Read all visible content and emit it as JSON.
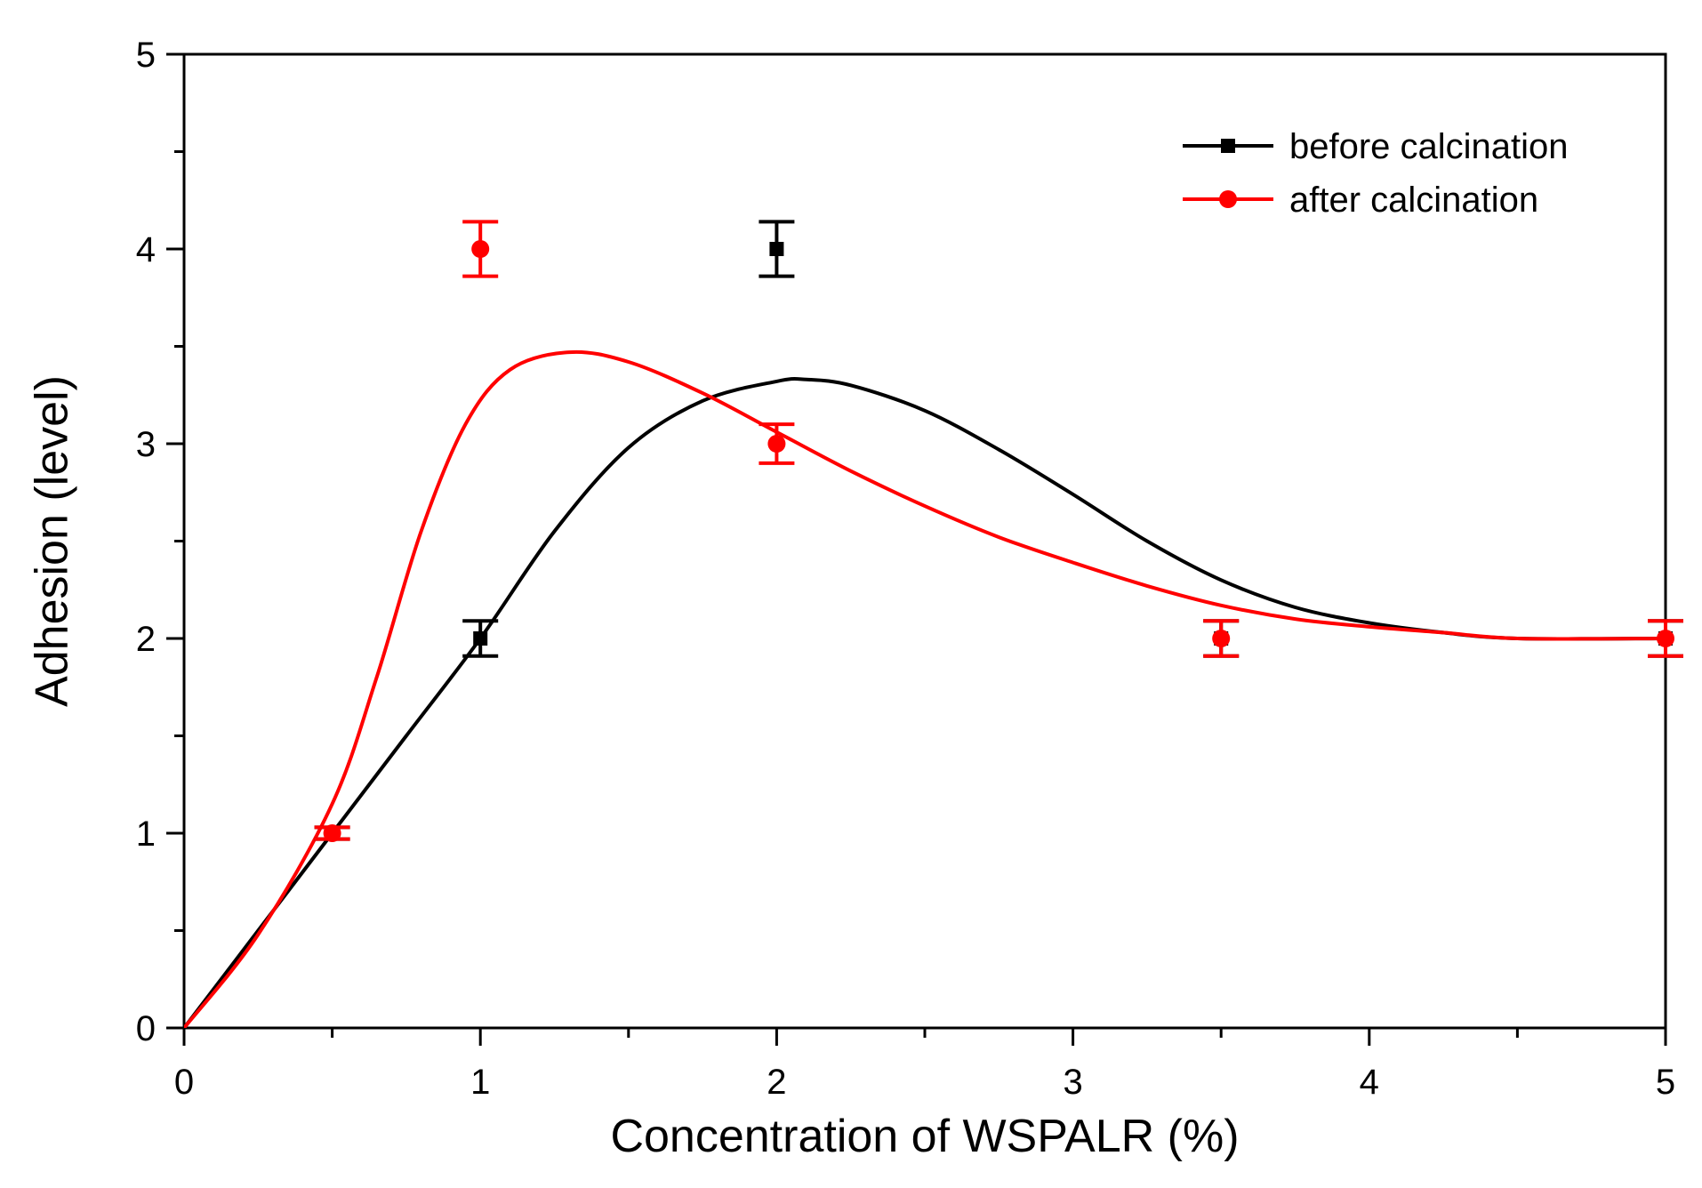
{
  "chart_data": {
    "type": "scatter",
    "xlabel": "Concentration of WSPALR (%)",
    "ylabel": "Adhesion (level)",
    "xlim": [
      0,
      5
    ],
    "ylim": [
      0,
      5
    ],
    "x_ticks": [
      "0",
      "1",
      "2",
      "3",
      "4",
      "5"
    ],
    "y_ticks": [
      "0",
      "1",
      "2",
      "3",
      "4",
      "5"
    ],
    "grid": false,
    "legend_position": "top-right",
    "series": [
      {
        "name": "before calcination",
        "color": "#000000",
        "marker": "square",
        "points": [
          {
            "x": 0.5,
            "y": 1,
            "err": 0.03
          },
          {
            "x": 1,
            "y": 2,
            "err": 0.09
          },
          {
            "x": 2,
            "y": 4,
            "err": 0.14
          },
          {
            "x": 3.5,
            "y": 2,
            "err": 0.09
          },
          {
            "x": 5,
            "y": 2,
            "err": 0.09
          }
        ],
        "fit_curve": [
          [
            0,
            0
          ],
          [
            0.25,
            0.5
          ],
          [
            0.5,
            1.0
          ],
          [
            0.75,
            1.5
          ],
          [
            1.0,
            2.0
          ],
          [
            1.25,
            2.55
          ],
          [
            1.5,
            2.98
          ],
          [
            1.75,
            3.22
          ],
          [
            2.0,
            3.32
          ],
          [
            2.1,
            3.33
          ],
          [
            2.25,
            3.3
          ],
          [
            2.5,
            3.17
          ],
          [
            2.75,
            2.97
          ],
          [
            3.0,
            2.74
          ],
          [
            3.25,
            2.5
          ],
          [
            3.5,
            2.3
          ],
          [
            3.75,
            2.16
          ],
          [
            4.0,
            2.08
          ],
          [
            4.25,
            2.03
          ],
          [
            4.5,
            2.0
          ],
          [
            5.0,
            2.0
          ]
        ]
      },
      {
        "name": "after calcination",
        "color": "#ff0000",
        "marker": "circle",
        "points": [
          {
            "x": 0.5,
            "y": 1,
            "err": 0.03
          },
          {
            "x": 1,
            "y": 4,
            "err": 0.14
          },
          {
            "x": 2,
            "y": 3,
            "err": 0.1
          },
          {
            "x": 3.5,
            "y": 2,
            "err": 0.09
          },
          {
            "x": 5,
            "y": 2,
            "err": 0.09
          }
        ],
        "fit_curve": [
          [
            0,
            0
          ],
          [
            0.25,
            0.48
          ],
          [
            0.5,
            1.15
          ],
          [
            0.65,
            1.8
          ],
          [
            0.8,
            2.55
          ],
          [
            0.95,
            3.1
          ],
          [
            1.1,
            3.38
          ],
          [
            1.3,
            3.47
          ],
          [
            1.5,
            3.42
          ],
          [
            1.75,
            3.26
          ],
          [
            2.0,
            3.06
          ],
          [
            2.25,
            2.86
          ],
          [
            2.5,
            2.68
          ],
          [
            2.75,
            2.52
          ],
          [
            3.0,
            2.39
          ],
          [
            3.25,
            2.27
          ],
          [
            3.5,
            2.17
          ],
          [
            3.75,
            2.1
          ],
          [
            4.0,
            2.06
          ],
          [
            4.25,
            2.03
          ],
          [
            4.5,
            2.0
          ],
          [
            5.0,
            2.0
          ]
        ]
      }
    ]
  }
}
